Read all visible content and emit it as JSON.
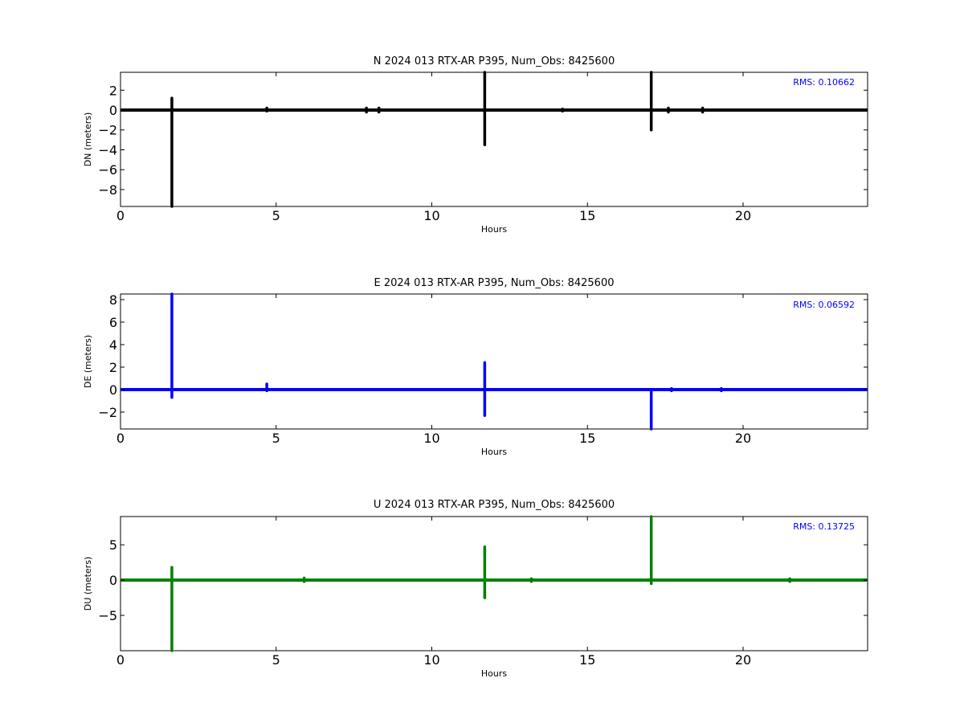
{
  "chart_data": [
    {
      "type": "scatter",
      "title": "N 2024 013 RTX-AR  P395, Num_Obs: 8425600",
      "xlabel": "Hours",
      "ylabel": "DN (meters)",
      "xlim": [
        0,
        24
      ],
      "ylim": [
        -9.7,
        3.8
      ],
      "xticks": [
        0,
        5,
        10,
        15,
        20
      ],
      "yticks": [
        2,
        0,
        -2,
        -4,
        -6,
        -8
      ],
      "grid": false,
      "color": "#000000",
      "rms_label": "RMS:  0.10662",
      "rms_color": "#0000ff",
      "baseline": {
        "x": [
          0,
          24
        ],
        "y": 0
      },
      "spikes": [
        {
          "x": 1.65,
          "y": [
            -9.7,
            1.2
          ]
        },
        {
          "x": 11.7,
          "y": [
            -3.5,
            3.8
          ]
        },
        {
          "x": 17.05,
          "y": [
            -2.0,
            3.8
          ]
        },
        {
          "x": 4.7,
          "y": [
            -0.1,
            0.2
          ]
        },
        {
          "x": 7.9,
          "y": [
            -0.2,
            0.2
          ]
        },
        {
          "x": 8.3,
          "y": [
            -0.2,
            0.2
          ]
        },
        {
          "x": 14.2,
          "y": [
            -0.1,
            0.1
          ]
        },
        {
          "x": 17.6,
          "y": [
            -0.2,
            0.2
          ]
        },
        {
          "x": 18.7,
          "y": [
            -0.2,
            0.2
          ]
        }
      ]
    },
    {
      "type": "scatter",
      "title": "E 2024 013 RTX-AR  P395, Num_Obs: 8425600",
      "xlabel": "Hours",
      "ylabel": "DE (meters)",
      "xlim": [
        0,
        24
      ],
      "ylim": [
        -3.5,
        8.5
      ],
      "xticks": [
        0,
        5,
        10,
        15,
        20
      ],
      "yticks": [
        8,
        6,
        4,
        2,
        0,
        -2
      ],
      "grid": false,
      "color": "#0000ff",
      "rms_label": "RMS:  0.06592",
      "rms_color": "#0000ff",
      "baseline": {
        "x": [
          0,
          24
        ],
        "y": 0
      },
      "spikes": [
        {
          "x": 1.65,
          "y": [
            -0.7,
            8.5
          ]
        },
        {
          "x": 4.7,
          "y": [
            -0.1,
            0.5
          ]
        },
        {
          "x": 11.7,
          "y": [
            -2.3,
            2.4
          ]
        },
        {
          "x": 17.05,
          "y": [
            -3.5,
            -0.1
          ]
        },
        {
          "x": 17.7,
          "y": [
            -0.1,
            0.1
          ]
        },
        {
          "x": 19.3,
          "y": [
            -0.1,
            0.1
          ]
        }
      ]
    },
    {
      "type": "scatter",
      "title": "U 2024 013 RTX-AR  P395, Num_Obs: 8425600",
      "xlabel": "Hours",
      "ylabel": "DU (meters)",
      "xlim": [
        0,
        24
      ],
      "ylim": [
        -10,
        9
      ],
      "xticks": [
        0,
        5,
        10,
        15,
        20
      ],
      "yticks": [
        5,
        0,
        -5
      ],
      "grid": false,
      "color": "#008000",
      "rms_label": "RMS:  0.13725",
      "rms_color": "#0000ff",
      "baseline": {
        "x": [
          0,
          24
        ],
        "y": 0
      },
      "spikes": [
        {
          "x": 1.65,
          "y": [
            -10,
            1.8
          ]
        },
        {
          "x": 11.7,
          "y": [
            -2.5,
            4.7
          ]
        },
        {
          "x": 17.05,
          "y": [
            -0.5,
            9
          ]
        },
        {
          "x": 5.9,
          "y": [
            -0.2,
            0.3
          ]
        },
        {
          "x": 13.2,
          "y": [
            -0.2,
            0.2
          ]
        },
        {
          "x": 21.5,
          "y": [
            -0.2,
            0.2
          ]
        }
      ]
    }
  ]
}
